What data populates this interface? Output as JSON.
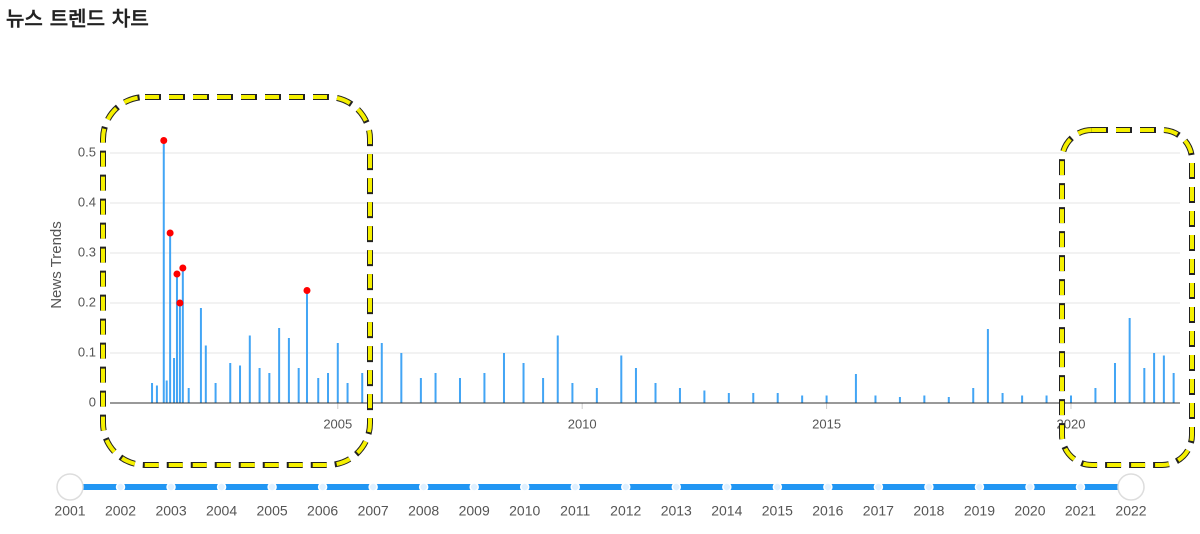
{
  "header": {
    "title": "뉴스 트렌드 차트"
  },
  "chart_data": {
    "type": "bar",
    "ylabel": "News Trends",
    "color": "#42a5f5",
    "grid": true,
    "xlim": [
      2000.34,
      2022.23
    ],
    "xticks": [
      2005,
      2010,
      2015,
      2020
    ],
    "ylim": [
      0,
      0.55
    ],
    "yticks": [
      0,
      0.1,
      0.2,
      0.3,
      0.4,
      0.5
    ],
    "x": [
      2001.2,
      2001.3,
      2001.44,
      2001.5,
      2001.57,
      2001.65,
      2001.71,
      2001.77,
      2001.83,
      2001.95,
      2002.2,
      2002.3,
      2002.5,
      2002.8,
      2003.0,
      2003.2,
      2003.4,
      2003.6,
      2003.8,
      2004.0,
      2004.2,
      2004.37,
      2004.6,
      2004.8,
      2005.0,
      2005.2,
      2005.5,
      2005.9,
      2006.3,
      2006.7,
      2007.0,
      2007.5,
      2008.0,
      2008.4,
      2008.8,
      2009.2,
      2009.5,
      2009.8,
      2010.3,
      2010.8,
      2011.1,
      2011.5,
      2012.0,
      2012.5,
      2013.0,
      2013.5,
      2014.0,
      2014.5,
      2015.0,
      2015.6,
      2016.0,
      2016.5,
      2017.0,
      2017.5,
      2018.0,
      2018.3,
      2018.6,
      2019.0,
      2019.5,
      2020.0,
      2020.5,
      2020.9,
      2021.2,
      2021.5,
      2021.7,
      2021.9,
      2022.1
    ],
    "values": [
      0.04,
      0.035,
      0.525,
      0.045,
      0.34,
      0.09,
      0.258,
      0.2,
      0.27,
      0.03,
      0.19,
      0.115,
      0.04,
      0.08,
      0.075,
      0.135,
      0.07,
      0.06,
      0.15,
      0.13,
      0.07,
      0.225,
      0.05,
      0.06,
      0.12,
      0.04,
      0.06,
      0.12,
      0.1,
      0.05,
      0.06,
      0.05,
      0.06,
      0.1,
      0.08,
      0.05,
      0.135,
      0.04,
      0.03,
      0.095,
      0.07,
      0.04,
      0.03,
      0.025,
      0.02,
      0.02,
      0.02,
      0.015,
      0.015,
      0.058,
      0.015,
      0.012,
      0.015,
      0.012,
      0.03,
      0.148,
      0.02,
      0.015,
      0.015,
      0.015,
      0.03,
      0.08,
      0.17,
      0.07,
      0.1,
      0.095,
      0.06
    ],
    "highlights": {
      "color": "#ff0000",
      "x": [
        2001.44,
        2001.57,
        2001.71,
        2001.77,
        2001.83,
        2004.37
      ],
      "values": [
        0.525,
        0.34,
        0.258,
        0.2,
        0.27,
        0.225
      ]
    }
  },
  "slider": {
    "labels": [
      "2001",
      "2002",
      "2003",
      "2004",
      "2005",
      "2006",
      "2007",
      "2008",
      "2009",
      "2010",
      "2011",
      "2012",
      "2013",
      "2014",
      "2015",
      "2016",
      "2017",
      "2018",
      "2019",
      "2020",
      "2021",
      "2022"
    ]
  }
}
